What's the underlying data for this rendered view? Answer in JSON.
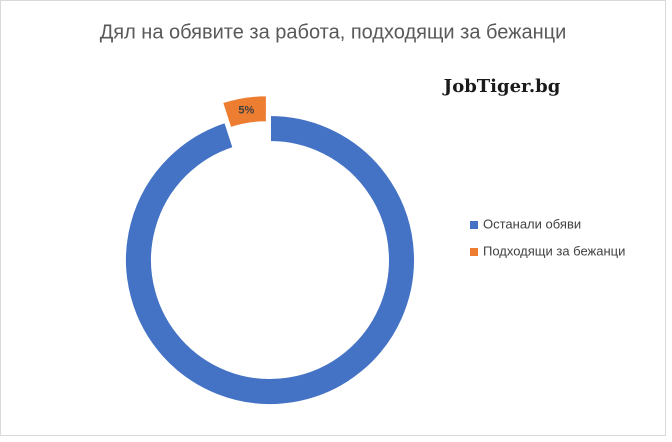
{
  "chart_data": {
    "type": "donut",
    "title": "Дял на обявите за работа, подходящи за бежанци",
    "watermark": "JobTiger.bg",
    "categories": [
      "Останали обяви",
      "Подходящи за бежанци"
    ],
    "values": [
      95,
      5
    ],
    "value_labels": [
      null,
      "5%"
    ],
    "colors": [
      "#4472c4",
      "#ed7d31"
    ],
    "exploded": 1,
    "legend": "right"
  }
}
